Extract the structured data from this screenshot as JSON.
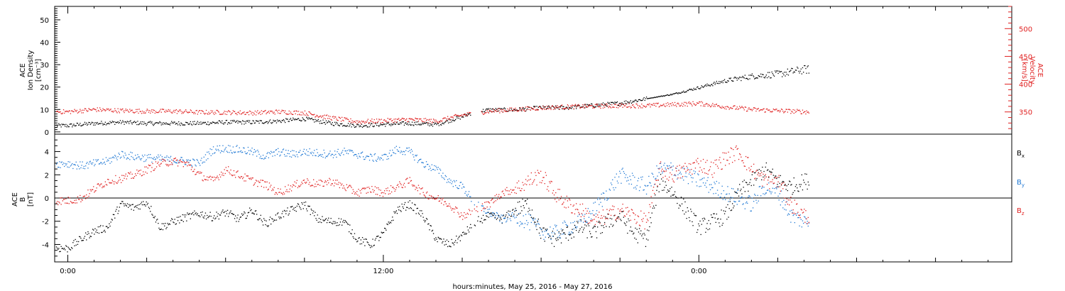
{
  "chart_data": [
    {
      "type": "scatter",
      "panel": "top",
      "ylabel_left": [
        "ACE",
        "Ion Density",
        "[cm⁻³]"
      ],
      "ylabel_right": [
        "ACE",
        "Velocity",
        "[km/s]"
      ],
      "y_left_ticks": [
        "0",
        "10",
        "20",
        "30",
        "40",
        "50"
      ],
      "y_left_range": [
        -1,
        56
      ],
      "y_right_ticks": [
        "350",
        "400",
        "450",
        "500"
      ],
      "y_right_range": [
        310,
        540
      ],
      "x_range_hours": [
        -0.5,
        35.9
      ],
      "data_end_hour": 28.2,
      "series": [
        {
          "axis": "left",
          "color": "#000000",
          "x": [
            0,
            1,
            2,
            3,
            4,
            5,
            6,
            7,
            8,
            9,
            10,
            11,
            12,
            13,
            14,
            15,
            15.4,
            16,
            17,
            18,
            19,
            20,
            21,
            22,
            23,
            24,
            25,
            26,
            27,
            28
          ],
          "values": [
            3,
            4,
            4.5,
            4,
            4,
            4,
            4.5,
            4.5,
            5,
            6,
            4,
            3,
            3.5,
            4,
            3.5,
            7,
            9,
            10,
            10,
            11,
            11,
            12,
            13,
            15,
            17,
            20,
            23,
            25,
            26,
            28
          ]
        },
        {
          "axis": "right",
          "color": "#e02020",
          "x": [
            0,
            1,
            2,
            3,
            4,
            5,
            6,
            7,
            8,
            9,
            10,
            11,
            12,
            13,
            14,
            15,
            16,
            17,
            18,
            19,
            20,
            21,
            22,
            23,
            24,
            25,
            26,
            27,
            28
          ],
          "values": [
            351,
            355,
            353,
            352,
            352,
            350,
            350,
            349,
            351,
            349,
            340,
            333,
            335,
            337,
            334,
            345,
            352,
            355,
            358,
            360,
            361,
            362,
            362,
            364,
            366,
            360,
            355,
            353,
            351
          ]
        }
      ]
    },
    {
      "type": "scatter",
      "panel": "bottom",
      "ylabel": [
        "ACE",
        "B",
        "[nT]"
      ],
      "y_ticks": [
        "-4",
        "-2",
        "0",
        "2",
        "4"
      ],
      "y_range": [
        -5.5,
        5.5
      ],
      "zero_line": true,
      "x_ticks": [
        "0:00",
        "12:00",
        "0:00"
      ],
      "x_tick_hours": [
        0,
        12,
        24
      ],
      "x_range_hours": [
        -0.5,
        35.9
      ],
      "data_end_hour": 28.2,
      "xlabel": "hours:minutes, May 25, 2016 - May 27, 2016",
      "series": [
        {
          "name": "B",
          "subscript": "x",
          "color": "#000000",
          "x": [
            0,
            0.5,
            1,
            1.5,
            2,
            2.5,
            3,
            3.5,
            4,
            4.5,
            5,
            5.5,
            6,
            6.5,
            7,
            7.5,
            8,
            8.5,
            9,
            9.5,
            10,
            10.5,
            11,
            11.5,
            12,
            12.5,
            13,
            13.5,
            14,
            14.5,
            15,
            15.5,
            16,
            16.5,
            17,
            17.5,
            18,
            18.5,
            19,
            19.5,
            20,
            20.5,
            21,
            21.5,
            22,
            22.5,
            23,
            23.5,
            24,
            24.5,
            25,
            25.5,
            26,
            26.5,
            27,
            27.5,
            28
          ],
          "values": [
            -4.3,
            -3.5,
            -2.8,
            -2.5,
            -0.5,
            -0.8,
            -0.3,
            -2.5,
            -2.0,
            -1.6,
            -1.3,
            -1.6,
            -1.2,
            -1.8,
            -1.0,
            -2.2,
            -1.5,
            -1.0,
            -0.5,
            -1.8,
            -2.0,
            -2.0,
            -3.5,
            -4.0,
            -3.0,
            -1.0,
            -0.5,
            -1.5,
            -3.5,
            -4.0,
            -3.2,
            -2.0,
            -1.5,
            -1.8,
            -1.0,
            -0.5,
            -3.0,
            -3.5,
            -3.0,
            -2.5,
            -3.0,
            -2.0,
            -1.5,
            -3.0,
            -3.5,
            1.5,
            0.5,
            -1.0,
            -2.5,
            -2.0,
            -1.5,
            0.5,
            1.5,
            2.5,
            1.5,
            1.0,
            1.5
          ]
        },
        {
          "name": "B",
          "subscript": "y",
          "color": "#1f78d4",
          "x": [
            0,
            0.5,
            1,
            1.5,
            2,
            2.5,
            3,
            3.5,
            4,
            4.5,
            5,
            5.5,
            6,
            6.5,
            7,
            7.5,
            8,
            8.5,
            9,
            9.5,
            10,
            10.5,
            11,
            11.5,
            12,
            12.5,
            13,
            13.5,
            14,
            14.5,
            15,
            15.5,
            16,
            16.5,
            17,
            17.5,
            18,
            18.5,
            19,
            19.5,
            20,
            20.5,
            21,
            21.5,
            22,
            22.5,
            23,
            23.5,
            24,
            24.5,
            25,
            25.5,
            26,
            26.5,
            27,
            27.5,
            28
          ],
          "values": [
            3.0,
            2.8,
            3.0,
            3.2,
            3.8,
            3.6,
            3.5,
            3.4,
            3.3,
            3.2,
            3.0,
            4.2,
            4.3,
            4.2,
            4.0,
            3.6,
            4.0,
            3.8,
            4.0,
            3.9,
            3.8,
            4.0,
            3.8,
            3.5,
            3.5,
            4.2,
            4.0,
            3.0,
            2.5,
            1.5,
            1.0,
            -0.5,
            -1.2,
            -1.8,
            -1.5,
            -2.0,
            -2.8,
            -3.0,
            -2.5,
            -2.0,
            -1.0,
            0.5,
            2.0,
            1.5,
            1.0,
            2.5,
            2.5,
            2.0,
            1.5,
            1.0,
            0.5,
            0.0,
            -0.5,
            1.0,
            0.5,
            -1.5,
            -2.0
          ]
        },
        {
          "name": "B",
          "subscript": "z",
          "color": "#e02020",
          "x": [
            0,
            0.5,
            1,
            1.5,
            2,
            2.5,
            3,
            3.5,
            4,
            4.5,
            5,
            5.5,
            6,
            6.5,
            7,
            7.5,
            8,
            8.5,
            9,
            9.5,
            10,
            10.5,
            11,
            11.5,
            12,
            12.5,
            13,
            13.5,
            14,
            14.5,
            15,
            15.5,
            16,
            16.5,
            17,
            17.5,
            18,
            18.5,
            19,
            19.5,
            20,
            20.5,
            21,
            21.5,
            22,
            22.5,
            23,
            23.5,
            24,
            24.5,
            25,
            25.5,
            26,
            26.5,
            27,
            27.5,
            28
          ],
          "values": [
            -0.2,
            0.0,
            0.8,
            1.5,
            1.7,
            2.0,
            2.5,
            3.0,
            3.2,
            3.0,
            2.0,
            1.5,
            2.5,
            2.0,
            1.5,
            1.2,
            0.5,
            1.0,
            1.5,
            1.2,
            1.5,
            1.0,
            0.5,
            0.8,
            0.5,
            1.0,
            1.5,
            0.5,
            0.0,
            -0.5,
            -1.5,
            -1.0,
            -0.5,
            0.5,
            0.8,
            1.5,
            2.0,
            0.5,
            -0.5,
            -1.0,
            -2.0,
            -1.5,
            -1.0,
            -1.5,
            -2.0,
            2.5,
            2.0,
            2.5,
            3.0,
            2.5,
            3.5,
            4.0,
            2.5,
            1.5,
            1.5,
            -0.5,
            -1.5
          ]
        }
      ]
    }
  ]
}
